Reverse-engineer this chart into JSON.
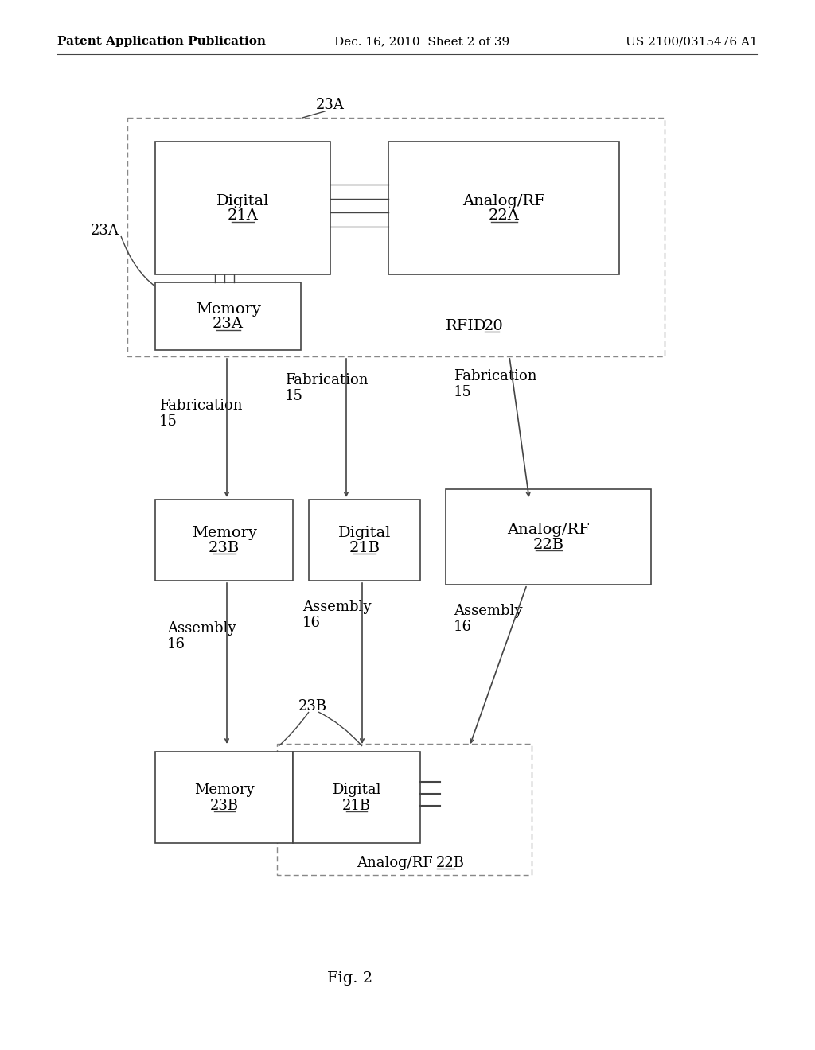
{
  "header_left": "Patent Application Publication",
  "header_mid": "Dec. 16, 2010  Sheet 2 of 39",
  "header_right": "US 2100/0315476 A1",
  "fig_label": "Fig. 2",
  "bg_color": "#ffffff",
  "line_color": "#444444",
  "text_color": "#000000",
  "box_fill": "#ffffff",
  "outer_fill": "#f9f9f9"
}
